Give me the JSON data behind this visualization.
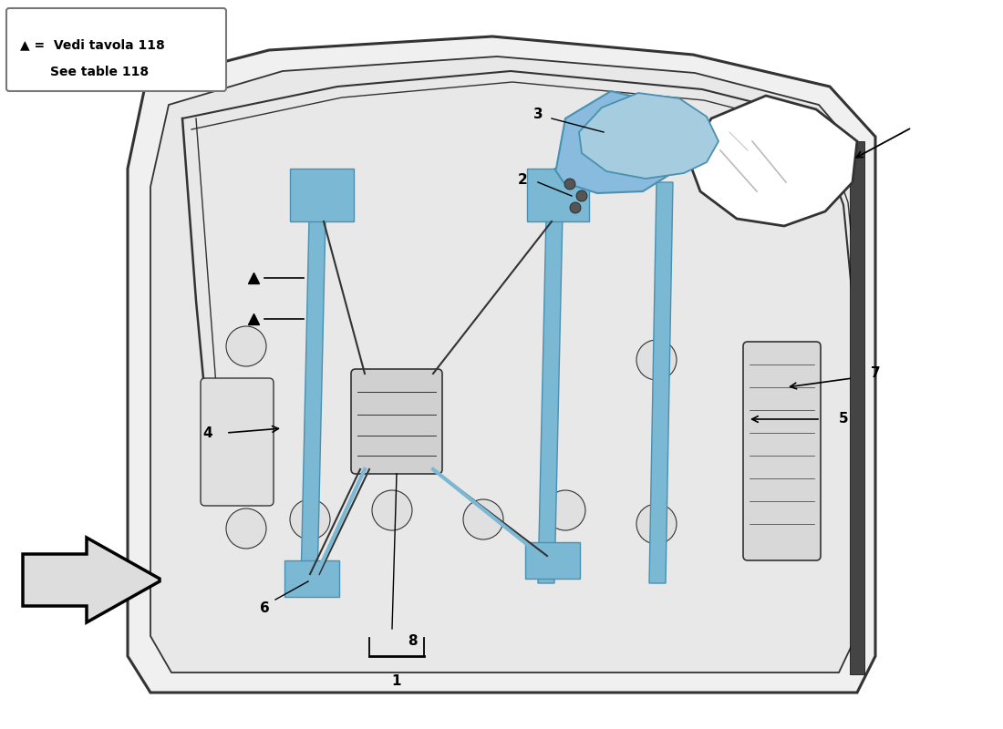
{
  "background_color": "#ffffff",
  "legend_line1": "▲ =  Vedi tavola 118",
  "legend_line2": "See table 118",
  "highlight_color": "#7ab8d4",
  "line_color": "#333333",
  "door_fill": "#f0f0f0",
  "inner_fill": "#e8e8e8",
  "mirror_blue": "#88bbdd",
  "mirror_dark": "#4a90b0",
  "part_numbers": [
    "1",
    "2",
    "3",
    "4",
    "5",
    "6",
    "7",
    "8"
  ]
}
